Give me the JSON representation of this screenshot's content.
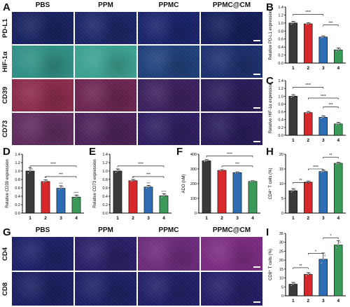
{
  "panel_letters": [
    "A",
    "B",
    "C",
    "D",
    "E",
    "F",
    "G",
    "H",
    "I"
  ],
  "panel_a": {
    "columns": [
      "PBS",
      "PPM",
      "PPMC",
      "PPMC@CM"
    ],
    "rows": [
      "PD-L1",
      "HIF-1α",
      "CD39",
      "CD73"
    ]
  },
  "panel_g": {
    "columns": [
      "PBS",
      "PPM",
      "PPMC",
      "PPMC@CM"
    ],
    "rows": [
      "CD4",
      "CD8"
    ]
  },
  "colors": {
    "group1": "#3a3a3a",
    "group2": "#d9282c",
    "group3": "#2e6db3",
    "group4": "#3b9a5a"
  },
  "chart_data": [
    {
      "id": "B",
      "type": "bar",
      "categories": [
        "1",
        "2",
        "3",
        "4"
      ],
      "values": [
        1.0,
        0.98,
        0.65,
        0.33
      ],
      "errors": [
        0.04,
        0.03,
        0.03,
        0.05
      ],
      "ylabel": "Relative PD-L1 expression",
      "ylim": [
        0,
        1.4
      ],
      "yticks": [
        "0.0",
        "0.2",
        "0.4",
        "0.6",
        "0.8",
        "1.0",
        "1.2",
        "1.4"
      ],
      "sig": [
        {
          "label": "****"
        },
        {
          "label": "***"
        }
      ]
    },
    {
      "id": "C",
      "type": "bar",
      "categories": [
        "1",
        "2",
        "3",
        "4"
      ],
      "values": [
        1.0,
        0.58,
        0.46,
        0.29
      ],
      "errors": [
        0.04,
        0.03,
        0.04,
        0.04
      ],
      "ylabel": "Relative HIF-1α expression",
      "ylim": [
        0,
        1.4
      ],
      "yticks": [
        "0.0",
        "0.2",
        "0.4",
        "0.6",
        "0.8",
        "1.0",
        "1.2",
        "1.4"
      ],
      "sig": [
        {
          "label": "****"
        },
        {
          "label": "****"
        },
        {
          "label": "***"
        }
      ]
    },
    {
      "id": "D",
      "type": "bar",
      "categories": [
        "1",
        "2",
        "3",
        "4"
      ],
      "values": [
        1.0,
        0.75,
        0.59,
        0.38
      ],
      "errors": [
        0.08,
        0.04,
        0.06,
        0.05
      ],
      "ylabel": "Relative CD39 expression",
      "ylim": [
        0,
        1.4
      ],
      "yticks": [
        "0.0",
        "0.2",
        "0.4",
        "0.6",
        "0.8",
        "1.0",
        "1.2",
        "1.4"
      ],
      "bar_labels": [
        "",
        "**",
        "***",
        "****"
      ],
      "sig": [
        {
          "label": "****"
        },
        {
          "label": "***"
        }
      ]
    },
    {
      "id": "E",
      "type": "bar",
      "categories": [
        "1",
        "2",
        "3",
        "4"
      ],
      "values": [
        1.0,
        0.77,
        0.62,
        0.41
      ],
      "errors": [
        0.05,
        0.03,
        0.04,
        0.05
      ],
      "ylabel": "Relative CD73 expression",
      "ylim": [
        0,
        1.4
      ],
      "yticks": [
        "0.0",
        "0.2",
        "0.4",
        "0.6",
        "0.8",
        "1.0",
        "1.2",
        "1.4"
      ],
      "bar_labels": [
        "",
        "**",
        "***",
        "****"
      ],
      "sig": [
        {
          "label": "****"
        },
        {
          "label": "***"
        }
      ]
    },
    {
      "id": "F",
      "type": "bar",
      "categories": [
        "1",
        "2",
        "3",
        "4"
      ],
      "values": [
        355,
        290,
        275,
        215
      ],
      "errors": [
        8,
        5,
        5,
        5
      ],
      "ylabel": "ADO (nM)",
      "ylim": [
        0,
        400
      ],
      "yticks": [
        "0",
        "100",
        "200",
        "300",
        "400"
      ],
      "sig": [
        {
          "label": "****"
        },
        {
          "label": "***"
        }
      ]
    },
    {
      "id": "H",
      "type": "bar",
      "categories": [
        "1",
        "2",
        "3",
        "4"
      ],
      "values": [
        7.6,
        10.5,
        14.1,
        16.9
      ],
      "errors": [
        0.7,
        0.4,
        0.5,
        0.4
      ],
      "ylabel": "CD4⁺ T cells (%)",
      "ylim": [
        0,
        20
      ],
      "yticks": [
        "0",
        "5",
        "10",
        "15",
        "20"
      ],
      "sig": [
        {
          "label": "**"
        },
        {
          "label": "****"
        },
        {
          "label": "**"
        }
      ]
    },
    {
      "id": "I",
      "type": "bar",
      "categories": [
        "1",
        "2",
        "3",
        "4"
      ],
      "values": [
        6.5,
        12.0,
        20.5,
        28.5
      ],
      "errors": [
        1.0,
        1.0,
        3.5,
        2.5
      ],
      "ylabel": "CD8⁺ T cells (%)",
      "ylim": [
        0,
        35
      ],
      "yticks": [
        "0",
        "5",
        "10",
        "15",
        "20",
        "25",
        "30",
        "35"
      ],
      "sig": [
        {
          "label": "**"
        },
        {
          "label": "*"
        },
        {
          "label": "*"
        }
      ]
    }
  ]
}
